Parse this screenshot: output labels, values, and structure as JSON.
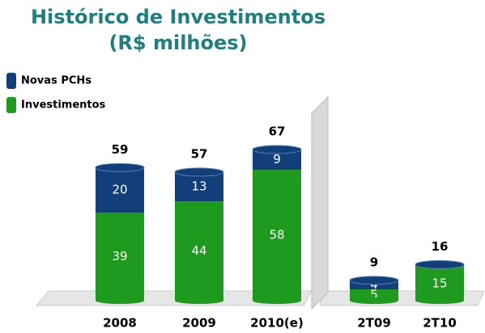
{
  "chart_data": {
    "type": "stacked-bar",
    "title": "Histórico de Investimentos",
    "subtitle": "(R$ milhões)",
    "categories": [
      "2008",
      "2009",
      "2010(e)",
      "2T09",
      "2T10"
    ],
    "series": [
      {
        "name": "Investimentos",
        "color": "#1e9a1e",
        "values": [
          39,
          44,
          58,
          5,
          15
        ]
      },
      {
        "name": "Novas PCHs",
        "color": "#123f7a",
        "values": [
          20,
          13,
          9,
          4,
          1
        ]
      }
    ],
    "totals": [
      59,
      57,
      67,
      9,
      16
    ]
  }
}
